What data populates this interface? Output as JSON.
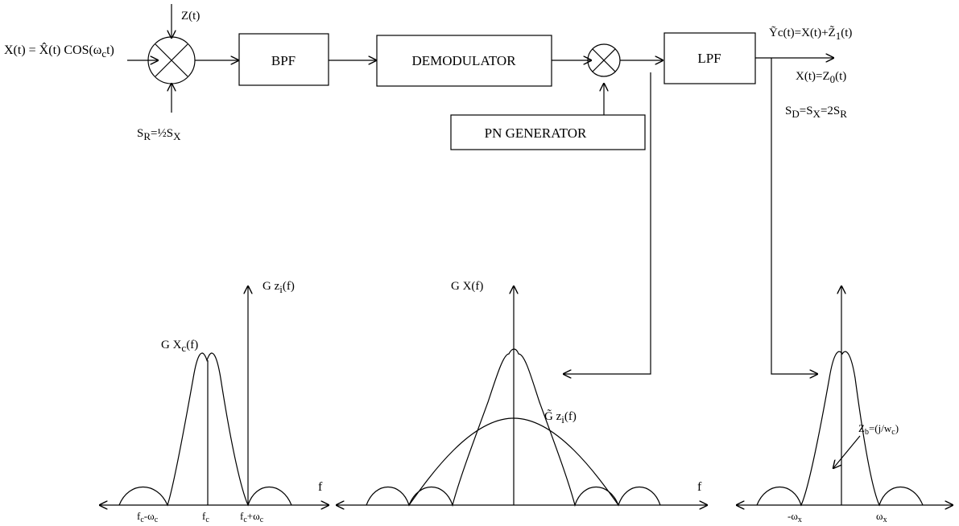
{
  "blocks": {
    "bpf": "BPF",
    "demodulator": "DEMODULATOR",
    "lpf": "LPF",
    "pn_generator": "PN GENERATOR"
  },
  "signals": {
    "input": "X(t) = X̂(t) COS(ω",
    "input_sub": "c",
    "input_tail": "t)",
    "noise": "Z(t)",
    "sr_eq": "S",
    "sr_eq_sub": "R",
    "sr_eq_mid": "=½S",
    "sr_eq_sub2": "X",
    "output_top": "Ỹc(t)=X(t)+Z̃",
    "output_top_sub": "1",
    "output_top_tail": "(t)",
    "output_mid": "X(t)=Z",
    "output_mid_sub": "0",
    "output_mid_tail": "(t)",
    "sd_a": "S",
    "sd_a_sub": "D",
    "sd_b": "=S",
    "sd_b_sub": "X",
    "sd_c": "=2S",
    "sd_c_sub": "R"
  },
  "plots": {
    "left": {
      "ylabel": "G z",
      "ylabel_sub": "i",
      "ylabel_tail": "(f)",
      "peak": "G X",
      "peak_sub": "c",
      "peak_tail": "(f)",
      "xlabel": "f",
      "ticks": [
        {
          "main": "f",
          "sub": "c",
          "tail": "-ω",
          "sub2": "c"
        },
        {
          "main": "f",
          "sub": "c",
          "tail": "",
          "sub2": ""
        },
        {
          "main": "f",
          "sub": "c",
          "tail": "+ω",
          "sub2": "c"
        }
      ]
    },
    "middle": {
      "ylabel": "G X(f)",
      "curve": "G̃ z",
      "curve_sub": "i",
      "curve_tail": "(f)",
      "xlabel": "f"
    },
    "right": {
      "annotation": "Z",
      "annotation_sub": "b",
      "annotation_tail": "=(j/w",
      "annotation_sub2": "c",
      "annotation_end": ")",
      "ticks": [
        {
          "main": "-ω",
          "sub": "x"
        },
        {
          "main": "ω",
          "sub": "x"
        }
      ]
    }
  }
}
